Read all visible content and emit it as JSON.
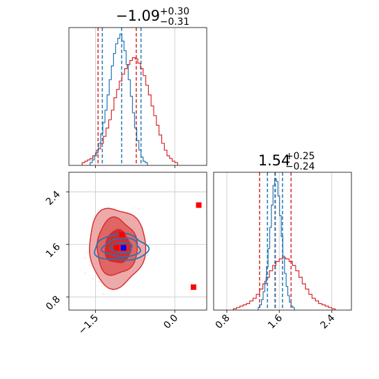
{
  "chart_data": {
    "type": "corner",
    "parameters": [
      {
        "title": {
          "median": "−1.09",
          "upper": "+0.30",
          "lower": "−0.31"
        },
        "quantiles": {
          "red": [
            -1.45,
            -0.73
          ],
          "blue": [
            -1.37,
            -0.64
          ]
        },
        "xlim": [
          -2.0,
          0.6
        ],
        "ticks": [
          {
            "value": -1.5,
            "label": "−1.5"
          },
          {
            "value": 0.0,
            "label": "0.0"
          }
        ],
        "hist_red": {
          "x_start": -1.75,
          "bin_width": 0.05,
          "values": [
            2,
            3,
            4,
            5,
            7,
            9,
            12,
            16,
            21,
            27,
            33,
            40,
            49,
            55,
            61,
            66,
            70,
            73,
            76,
            78,
            77,
            74,
            70,
            65,
            58,
            51,
            43,
            36,
            29,
            22,
            16,
            11,
            7,
            5,
            3,
            2
          ]
        },
        "hist_blue": {
          "x_start": -1.6,
          "bin_width": 0.04,
          "values": [
            2,
            4,
            7,
            11,
            16,
            23,
            31,
            40,
            51,
            62,
            72,
            81,
            88,
            92,
            95,
            90,
            83,
            73,
            62,
            50,
            38,
            27,
            18,
            11,
            6,
            3,
            2
          ]
        }
      },
      {
        "title": {
          "median": "1.54",
          "upper": "+0.25",
          "lower": "−0.24"
        },
        "quantiles": {
          "red": [
            1.3,
            1.78
          ],
          "blue": [
            1.42,
            1.65
          ]
        },
        "xlim": [
          0.6,
          2.7
        ],
        "ticks": [
          {
            "value": 0.8,
            "label": "0.8"
          },
          {
            "value": 1.6,
            "label": "1.6"
          },
          {
            "value": 2.4,
            "label": "2.4"
          }
        ],
        "hist_red": {
          "x_start": 0.9,
          "bin_width": 0.05,
          "values": [
            1,
            2,
            3,
            4,
            5,
            7,
            9,
            12,
            16,
            20,
            25,
            30,
            34,
            37,
            39,
            40,
            39,
            37,
            34,
            30,
            25,
            20,
            16,
            12,
            9,
            7,
            5,
            4,
            3,
            2,
            1
          ]
        },
        "hist_blue": {
          "x_start": 1.28,
          "bin_width": 0.025,
          "values": [
            2,
            4,
            8,
            14,
            22,
            33,
            47,
            63,
            80,
            95,
            100,
            98,
            87,
            72,
            56,
            41,
            28,
            18,
            11,
            6,
            3,
            2
          ]
        }
      }
    ],
    "scatter_2d": {
      "x_param": 0,
      "y_param": 1,
      "xlim": [
        -2.0,
        0.6
      ],
      "ylim": [
        0.6,
        2.7
      ],
      "yticks": [
        {
          "value": 0.8,
          "label": "0.8"
        },
        {
          "value": 1.6,
          "label": "1.6"
        },
        {
          "value": 2.4,
          "label": "2.4"
        }
      ],
      "red_contours": [
        {
          "level": "outer",
          "center": [
            -1.1,
            1.56
          ],
          "radii": [
            0.53,
            0.6
          ]
        },
        {
          "level": "middle",
          "center": [
            -1.1,
            1.56
          ],
          "radii": [
            0.38,
            0.43
          ]
        },
        {
          "level": "inner",
          "center": [
            -1.08,
            1.56
          ],
          "radii": [
            0.24,
            0.25
          ]
        }
      ],
      "blue_contours": [
        {
          "level": "outer",
          "center": [
            -1.02,
            1.55
          ],
          "radii": [
            0.5,
            0.2
          ]
        },
        {
          "level": "middle",
          "center": [
            -1.0,
            1.55
          ],
          "radii": [
            0.35,
            0.14
          ]
        },
        {
          "level": "inner",
          "center": [
            -1.0,
            1.55
          ],
          "radii": [
            0.2,
            0.08
          ]
        }
      ],
      "red_markers": [
        [
          -1.0,
          1.75
        ],
        [
          0.45,
          2.2
        ],
        [
          0.35,
          0.95
        ],
        [
          -1.1,
          1.55
        ]
      ],
      "blue_markers": [
        [
          -0.97,
          1.55
        ]
      ]
    },
    "colors": {
      "red": "#d62728",
      "blue": "#1f77b4",
      "red_fill_outer": "#eda6a6",
      "red_fill_middle": "#e06262",
      "red_fill_inner": "#d62728",
      "grid": "#c8c8c8"
    }
  }
}
